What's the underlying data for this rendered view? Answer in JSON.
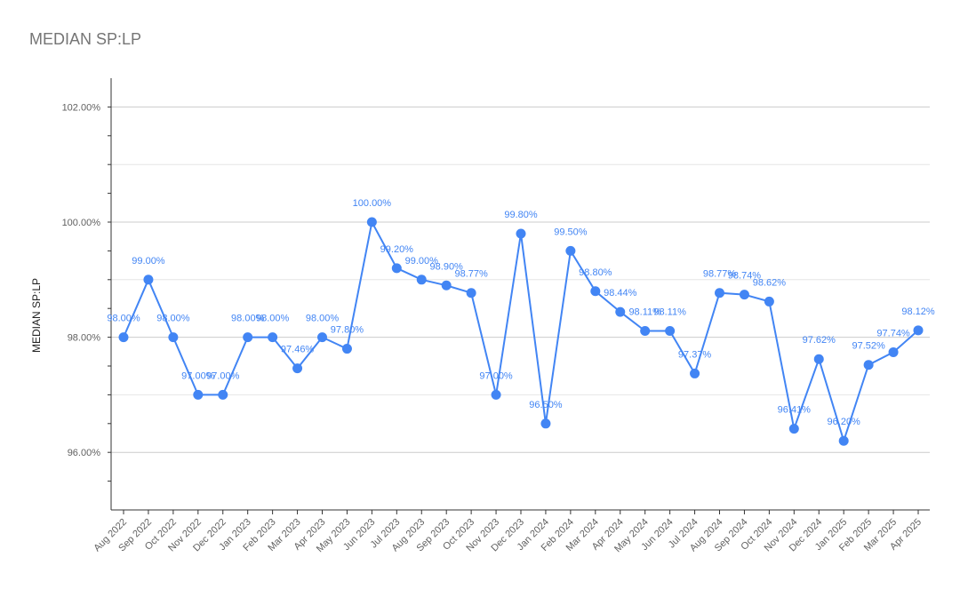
{
  "chart_data": {
    "type": "line",
    "title": "MEDIAN SP:LP",
    "xlabel": "",
    "ylabel": "MEDIAN SP:LP",
    "ylim": [
      95,
      102.5
    ],
    "yticks": [
      "96.00%",
      "98.00%",
      "100.00%",
      "102.00%"
    ],
    "grid": true,
    "legend": "none",
    "line_color": "#4285f4",
    "categories": [
      "Aug 2022",
      "Sep 2022",
      "Oct 2022",
      "Nov 2022",
      "Dec 2022",
      "Jan 2023",
      "Feb 2023",
      "Mar 2023",
      "Apr 2023",
      "May 2023",
      "Jun 2023",
      "Jul 2023",
      "Aug 2023",
      "Sep 2023",
      "Oct 2023",
      "Nov 2023",
      "Dec 2023",
      "Jan 2024",
      "Feb 2024",
      "Mar 2024",
      "Apr 2024",
      "May 2024",
      "Jun 2024",
      "Jul 2024",
      "Aug 2024",
      "Sep 2024",
      "Oct 2024",
      "Nov 2024",
      "Dec 2024",
      "Jan 2025",
      "Feb 2025",
      "Mar 2025",
      "Apr 2025"
    ],
    "values": [
      98.0,
      99.0,
      98.0,
      97.0,
      97.0,
      98.0,
      98.0,
      97.46,
      98.0,
      97.8,
      100.0,
      99.2,
      99.0,
      98.9,
      98.77,
      97.0,
      99.8,
      96.5,
      99.5,
      98.8,
      98.44,
      98.11,
      98.11,
      97.37,
      98.77,
      98.74,
      98.62,
      96.41,
      97.62,
      96.2,
      97.52,
      97.74,
      98.12
    ],
    "data_labels": [
      "98.00%",
      "99.00%",
      "98.00%",
      "97.00%",
      "97.00%",
      "98.00%",
      "98.00%",
      "97.46%",
      "98.00%",
      "97.80%",
      "100.00%",
      "99.20%",
      "99.00%",
      "98.90%",
      "98.77%",
      "97.00%",
      "99.80%",
      "96.50%",
      "99.50%",
      "98.80%",
      "98.44%",
      "98.11%",
      "98.11%",
      "97.37%",
      "98.77%",
      "98.74%",
      "98.62%",
      "96.41%",
      "97.62%",
      "96.20%",
      "97.52%",
      "97.74%",
      "98.12%"
    ]
  }
}
